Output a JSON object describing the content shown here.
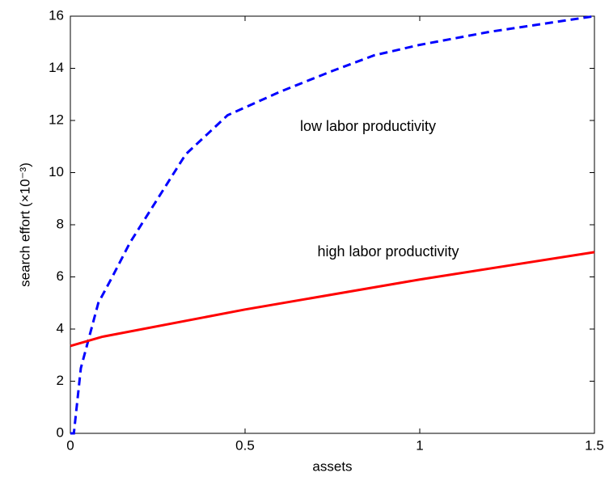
{
  "chart_data": {
    "type": "line",
    "xlabel": "assets",
    "ylabel": "search effort (×10⁻³)",
    "xlim": [
      0,
      1.5
    ],
    "xticks": [
      0,
      0.5,
      1,
      1.5
    ],
    "ylim": [
      0,
      16
    ],
    "yticks": [
      0,
      2,
      4,
      6,
      8,
      10,
      12,
      14,
      16
    ],
    "series": [
      {
        "name": "low labor productivity",
        "color": "#0000ff",
        "dash": true,
        "x": [
          0,
          0.01,
          0.03,
          0.05,
          0.08,
          0.12,
          0.17,
          0.25,
          0.33,
          0.45,
          0.6,
          0.75,
          0.87,
          1.0,
          1.2,
          1.35,
          1.5
        ],
        "values": [
          0,
          0,
          2.5,
          3.5,
          5,
          6,
          7.3,
          9,
          10.7,
          12.2,
          13.1,
          13.9,
          14.5,
          14.9,
          15.4,
          15.7,
          16
        ]
      },
      {
        "name": "high labor productivity",
        "color": "#ff0000",
        "dash": false,
        "x": [
          0,
          0.09,
          0.5,
          1.0,
          1.5
        ],
        "values": [
          3.35,
          3.7,
          4.75,
          5.9,
          6.95
        ]
      }
    ]
  }
}
